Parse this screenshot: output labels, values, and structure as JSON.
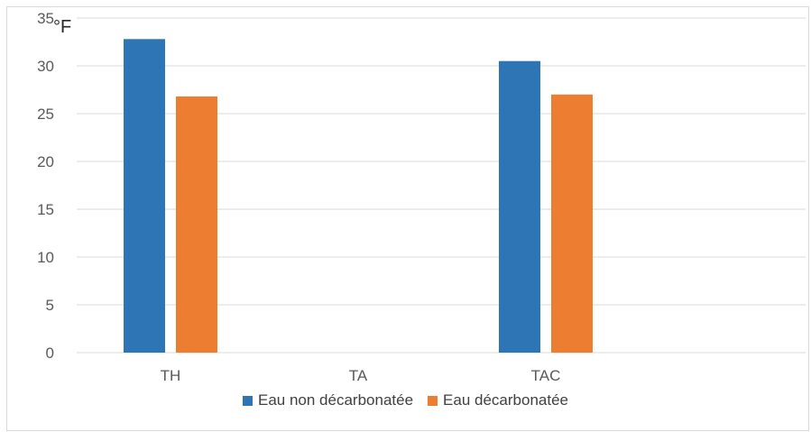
{
  "chart_data": {
    "type": "bar",
    "unit_label": "°F",
    "categories": [
      "TH",
      "TA",
      "TAC"
    ],
    "series": [
      {
        "name": "Eau non décarbonatée",
        "color": "#2e75b6",
        "values": [
          32.8,
          0,
          30.5
        ]
      },
      {
        "name": "Eau décarbonatée",
        "color": "#ed7d31",
        "values": [
          26.8,
          0,
          27.0
        ]
      }
    ],
    "ylim": [
      0,
      35
    ],
    "yticks": [
      0,
      5,
      10,
      15,
      20,
      25,
      30,
      35
    ],
    "grid": true,
    "legend_position": "bottom"
  }
}
